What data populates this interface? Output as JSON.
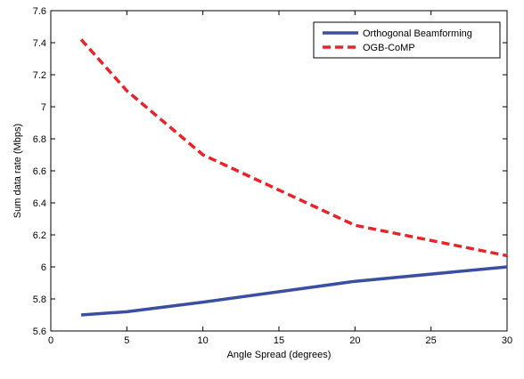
{
  "chart_data": {
    "type": "line",
    "xlabel": "Angle Spread (degrees)",
    "ylabel": "Sum data rate (Mbps)",
    "xlim": [
      0,
      30
    ],
    "ylim": [
      5.6,
      7.6
    ],
    "xticks": [
      0,
      5,
      10,
      15,
      20,
      25,
      30
    ],
    "yticks": [
      5.6,
      5.8,
      6.0,
      6.2,
      6.4,
      6.6,
      6.8,
      7.0,
      7.2,
      7.4,
      7.6
    ],
    "xtick_labels": [
      "0",
      "5",
      "10",
      "15",
      "20",
      "25",
      "30"
    ],
    "ytick_labels": [
      "5.6",
      "5.8",
      "6",
      "6.2",
      "6.4",
      "6.6",
      "6.8",
      "7",
      "7.2",
      "7.4",
      "7.6"
    ],
    "grid": false,
    "legend_position": "top-right",
    "series": [
      {
        "name": "Orthogonal Beamforming",
        "color": "#3a4fa0",
        "style": "solid",
        "x": [
          2,
          5,
          10,
          20,
          30
        ],
        "y": [
          5.7,
          5.72,
          5.78,
          5.91,
          6.0
        ]
      },
      {
        "name": "OGB-CoMP",
        "color": "#e8232a",
        "style": "dashed",
        "x": [
          2,
          5,
          10,
          20,
          30
        ],
        "y": [
          7.42,
          7.1,
          6.7,
          6.26,
          6.07
        ]
      }
    ]
  }
}
